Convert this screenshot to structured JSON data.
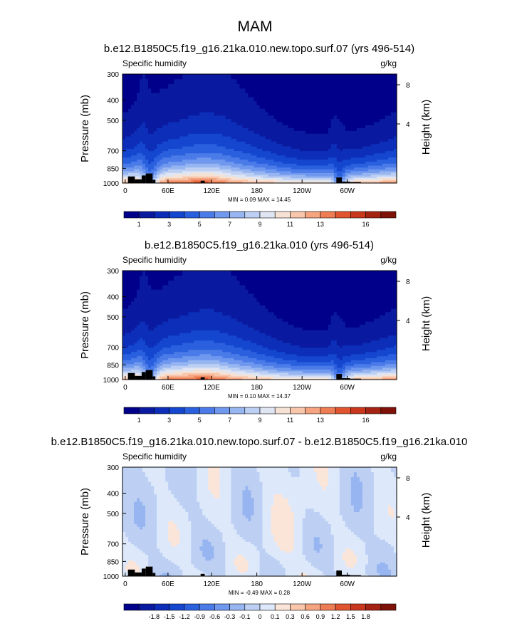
{
  "figure_title": "MAM",
  "colors": {
    "abs_scale": [
      "#00008a",
      "#0a1aa0",
      "#0c2eb8",
      "#1446cf",
      "#2a60de",
      "#4a7be8",
      "#6f98ee",
      "#97b5f1",
      "#bdd0f4",
      "#dfe5f2",
      "#f6e2d5",
      "#f8c6ab",
      "#f5a47f",
      "#ef7d53",
      "#e0552f",
      "#c9381c",
      "#a52312",
      "#7e1208"
    ],
    "diff_scale": [
      "#00008a",
      "#0a1aa0",
      "#0c2eb8",
      "#1446cf",
      "#2a60de",
      "#4a7be8",
      "#6f98ee",
      "#97b5f1",
      "#bdd0f4",
      "#dde9fb",
      "#fbe5d9",
      "#f8c6ab",
      "#f5a47f",
      "#ef7d53",
      "#e0552f",
      "#c9381c",
      "#a52312",
      "#7e1208"
    ],
    "land": "#000000"
  },
  "chart_data": [
    {
      "type": "heatmap",
      "title": "b.e12.B1850C5.f19_g16.21ka.010.new.topo.surf.07 (yrs 496-514)",
      "left_label": "Specific humidity",
      "units": "g/kg",
      "ylabel": "Pressure (mb)",
      "y2label": "Height (km)",
      "xticks": [
        "0",
        "60E",
        "120E",
        "180",
        "120W",
        "60W"
      ],
      "yticks": [
        "300",
        "400",
        "500",
        "700",
        "850",
        "1000"
      ],
      "height_ticks": [
        "8",
        "4"
      ],
      "stats": "MIN =  0.09  MAX =  14.45",
      "colorbar_labels": [
        "1",
        "3",
        "5",
        "7",
        "9",
        "11",
        "13",
        "16"
      ]
    },
    {
      "type": "heatmap",
      "title": "b.e12.B1850C5.f19_g16.21ka.010 (yrs 496-514)",
      "left_label": "Specific humidity",
      "units": "g/kg",
      "ylabel": "Pressure (mb)",
      "y2label": "Height (km)",
      "xticks": [
        "0",
        "60E",
        "120E",
        "180",
        "120W",
        "60W"
      ],
      "yticks": [
        "300",
        "400",
        "500",
        "700",
        "850",
        "1000"
      ],
      "height_ticks": [
        "8",
        "4"
      ],
      "stats": "MIN =  0.10  MAX =  14.37",
      "colorbar_labels": [
        "1",
        "3",
        "5",
        "7",
        "9",
        "11",
        "13",
        "16"
      ]
    },
    {
      "type": "heatmap",
      "title": "b.e12.B1850C5.f19_g16.21ka.010.new.topo.surf.07 - b.e12.B1850C5.f19_g16.21ka.010",
      "left_label": "Specific humidity",
      "units": "g/kg",
      "ylabel": "Pressure (mb)",
      "y2label": "Height (km)",
      "xticks": [
        "0",
        "60E",
        "120E",
        "180",
        "120W",
        "60W"
      ],
      "yticks": [
        "300",
        "400",
        "500",
        "700",
        "850",
        "1000"
      ],
      "height_ticks": [
        "8",
        "4"
      ],
      "stats": "MIN = -0.49  MAX =  0.28",
      "colorbar_labels": [
        "-1.8",
        "-1.5",
        "-1.2",
        "-0.9",
        "-0.6",
        "-0.3",
        "-0.1",
        "0",
        "0.1",
        "0.3",
        "0.6",
        "0.9",
        "1.2",
        "1.5",
        "1.8"
      ]
    }
  ]
}
